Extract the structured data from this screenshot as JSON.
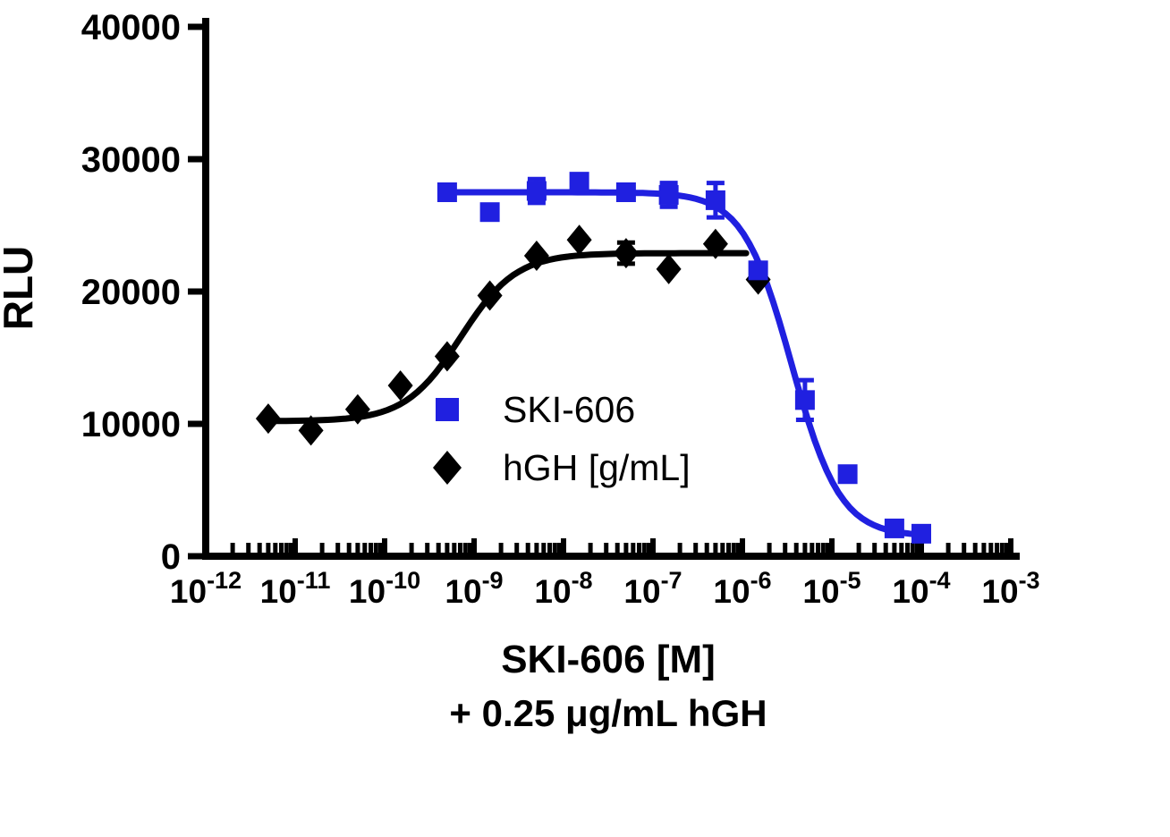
{
  "chart_data": {
    "type": "scatter",
    "title": "",
    "x_title_lines": [
      "SKI-606 [M]",
      "+ 0.25 μg/mL hGH"
    ],
    "y_axis": {
      "label": "RLU",
      "min": 0,
      "max": 40000,
      "ticks": [
        0,
        10000,
        20000,
        30000,
        40000
      ]
    },
    "x_axis": {
      "scale": "log10",
      "min_exp": -12,
      "max_exp": -3,
      "major_tick_exponents": [
        -12,
        -11,
        -10,
        -9,
        -8,
        -7,
        -6,
        -5,
        -4,
        -3
      ],
      "tick_label_base": "10"
    },
    "series": [
      {
        "name": "SKI-606",
        "marker": "square",
        "color": "#2020e0",
        "points": [
          {
            "x": 5e-10,
            "y": 27500
          },
          {
            "x": 1.5e-09,
            "y": 26000
          },
          {
            "x": 5e-09,
            "y": 27600,
            "err": 900
          },
          {
            "x": 1.5e-08,
            "y": 28300,
            "err": 500
          },
          {
            "x": 5e-08,
            "y": 27500
          },
          {
            "x": 1.5e-07,
            "y": 27300,
            "err": 900
          },
          {
            "x": 5e-07,
            "y": 26900,
            "err": 1300
          },
          {
            "x": 1.5e-06,
            "y": 21600
          },
          {
            "x": 5e-06,
            "y": 11800,
            "err": 1500
          },
          {
            "x": 1.5e-05,
            "y": 6200
          },
          {
            "x": 5e-05,
            "y": 2100
          },
          {
            "x": 0.0001,
            "y": 1700
          }
        ],
        "fit": {
          "top": 27500,
          "bottom": 1500,
          "logec50": -5.45,
          "hill": -1.6,
          "range": [
            5e-10,
            0.0001
          ]
        }
      },
      {
        "name": "hGH [g/mL]",
        "marker": "diamond",
        "color": "#000000",
        "points": [
          {
            "x": 5e-12,
            "y": 10400
          },
          {
            "x": 1.5e-11,
            "y": 9500
          },
          {
            "x": 5e-11,
            "y": 11100
          },
          {
            "x": 1.5e-10,
            "y": 12900
          },
          {
            "x": 5e-10,
            "y": 15100
          },
          {
            "x": 1.5e-09,
            "y": 19700
          },
          {
            "x": 5e-09,
            "y": 22700
          },
          {
            "x": 1.5e-08,
            "y": 23900
          },
          {
            "x": 5e-08,
            "y": 22900,
            "err": 800
          },
          {
            "x": 1.5e-07,
            "y": 21700
          },
          {
            "x": 5e-07,
            "y": 23600
          },
          {
            "x": 1.5e-06,
            "y": 20900
          }
        ],
        "fit": {
          "top": 22900,
          "bottom": 10200,
          "logec50": -9.15,
          "hill": 1.4,
          "range": [
            5e-12,
            1.1e-06
          ]
        }
      }
    ],
    "legend": {
      "position": "inside-center",
      "entries": [
        {
          "label": "SKI-606",
          "marker": "square",
          "color": "#2020e0"
        },
        {
          "label": "hGH [g/mL]",
          "marker": "diamond",
          "color": "#000000"
        }
      ]
    }
  }
}
